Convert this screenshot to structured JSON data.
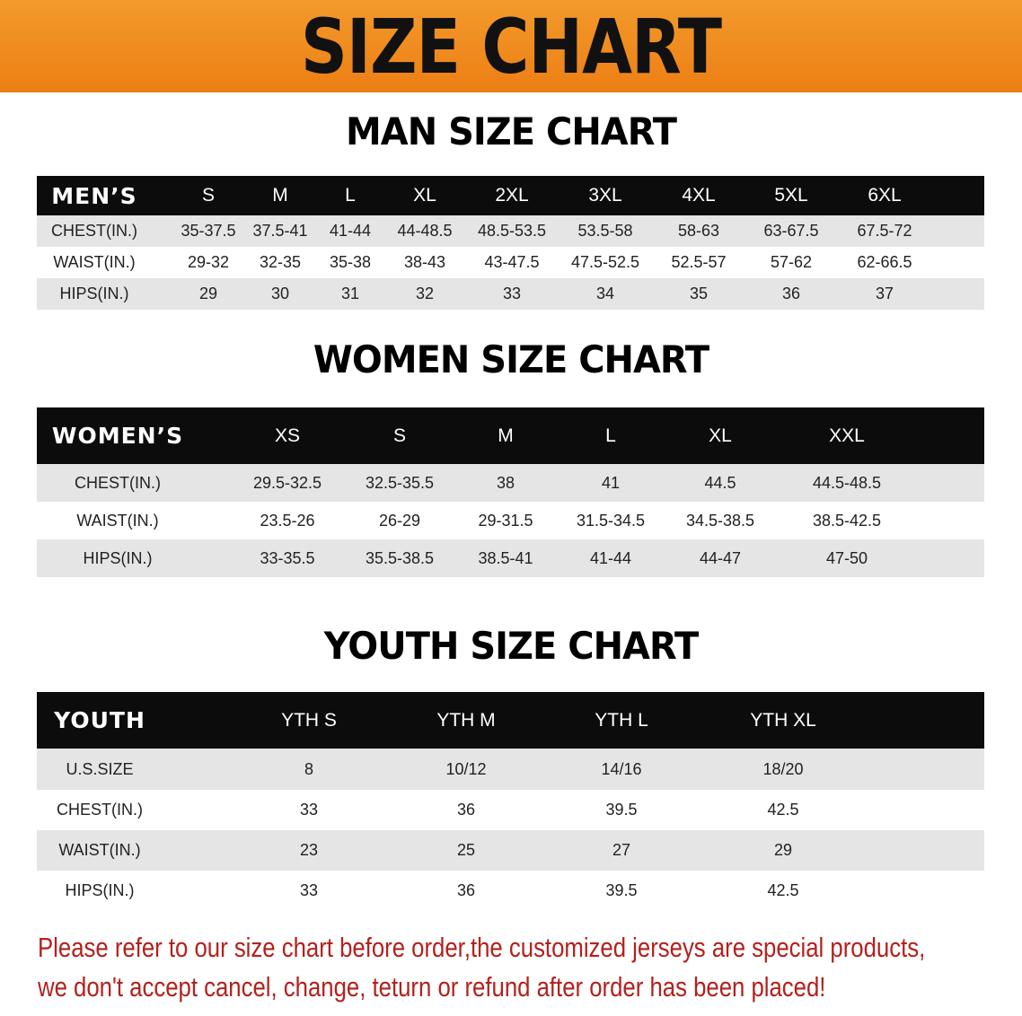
{
  "banner_title": "SIZE CHART",
  "accent_color": "#ef8a1e",
  "notice_color": "#b3211d",
  "men": {
    "title": "MAN SIZE CHART",
    "header": [
      "MEN’S",
      "S",
      "M",
      "L",
      "XL",
      "2XL",
      "3XL",
      "4XL",
      "5XL",
      "6XL"
    ],
    "rows": [
      [
        "CHEST(IN.)",
        "35-37.5",
        "37.5-41",
        "41-44",
        "44-48.5",
        "48.5-53.5",
        "53.5-58",
        "58-63",
        "63-67.5",
        "67.5-72"
      ],
      [
        "WAIST(IN.)",
        "29-32",
        "32-35",
        "35-38",
        "38-43",
        "43-47.5",
        "47.5-52.5",
        "52.5-57",
        "57-62",
        "62-66.5"
      ],
      [
        "HIPS(IN.)",
        "29",
        "30",
        "31",
        "32",
        "33",
        "34",
        "35",
        "36",
        "37"
      ]
    ]
  },
  "women": {
    "title": "WOMEN SIZE CHART",
    "header": [
      "WOMEN’S",
      "XS",
      "S",
      "M",
      "L",
      "XL",
      "XXL"
    ],
    "rows": [
      [
        "CHEST(IN.)",
        "29.5-32.5",
        "32.5-35.5",
        "38",
        "41",
        "44.5",
        "44.5-48.5"
      ],
      [
        "WAIST(IN.)",
        "23.5-26",
        "26-29",
        "29-31.5",
        "31.5-34.5",
        "34.5-38.5",
        "38.5-42.5"
      ],
      [
        "HIPS(IN.)",
        "33-35.5",
        "35.5-38.5",
        "38.5-41",
        "41-44",
        "44-47",
        "47-50"
      ]
    ]
  },
  "youth": {
    "title": "YOUTH SIZE CHART",
    "header": [
      "YOUTH",
      "YTH S",
      "YTH M",
      "YTH L",
      "YTH XL"
    ],
    "rows": [
      [
        "U.S.SIZE",
        "8",
        "10/12",
        "14/16",
        "18/20"
      ],
      [
        "CHEST(IN.)",
        "33",
        "36",
        "39.5",
        "42.5"
      ],
      [
        "WAIST(IN.)",
        "23",
        "25",
        "27",
        "29"
      ],
      [
        "HIPS(IN.)",
        "33",
        "36",
        "39.5",
        "42.5"
      ]
    ]
  },
  "notice": {
    "line1": "Please refer to our size chart before order,the customized jerseys are special products,",
    "line2": "we don't accept cancel, change, teturn or refund after order has been placed!"
  }
}
